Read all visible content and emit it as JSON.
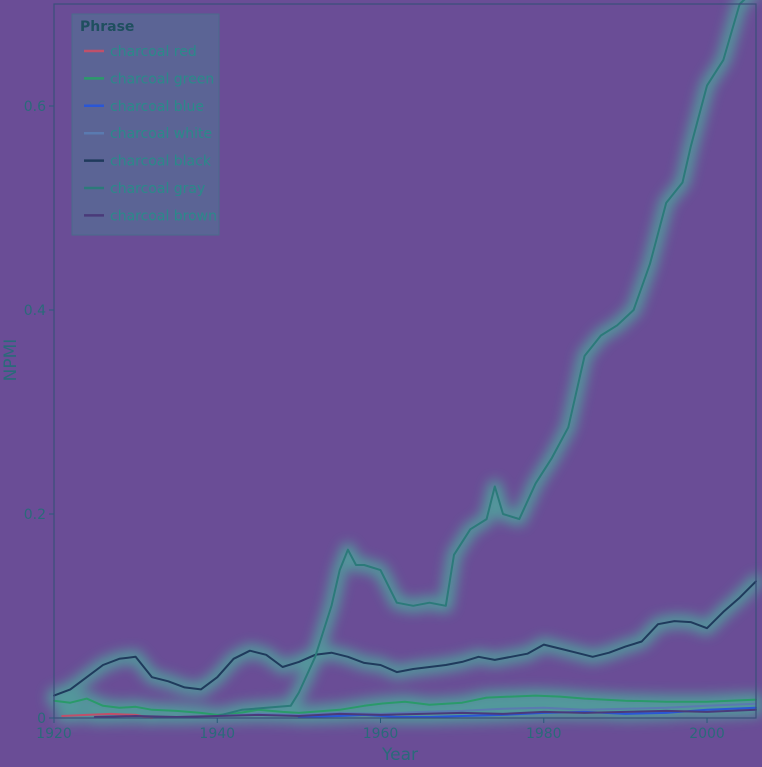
{
  "chart_data": {
    "type": "line",
    "title": "",
    "xlabel": "Year",
    "ylabel": "NPMI",
    "xlim": [
      1920,
      2006
    ],
    "ylim": [
      0,
      0.7
    ],
    "x_ticks": [
      1920,
      1940,
      1960,
      1980,
      2000
    ],
    "x_tick_labels": [
      "1920",
      "1940",
      "1960",
      "1980",
      "2000"
    ],
    "y_ticks": [
      0,
      0.2,
      0.4,
      0.6
    ],
    "y_tick_labels": [
      "0",
      "0.2",
      "0.4",
      "0.6"
    ],
    "grid": false,
    "legend": {
      "title": "Phrase",
      "position": "top-left"
    },
    "series": [
      {
        "name": "charcoal red",
        "color": "#c0506a",
        "x": [
          1921,
          1924,
          1927,
          1930,
          1932
        ],
        "y": [
          0.002,
          0.003,
          0.004,
          0.003,
          0.0
        ]
      },
      {
        "name": "charcoal green",
        "color": "#2a9a6a",
        "x": [
          1920,
          1922,
          1924,
          1926,
          1928,
          1930,
          1932,
          1935,
          1938,
          1940,
          1942,
          1945,
          1948,
          1950,
          1955,
          1958,
          1960,
          1963,
          1966,
          1970,
          1973,
          1976,
          1979,
          1982,
          1985,
          1990,
          1995,
          2000,
          2006
        ],
        "y": [
          0.017,
          0.015,
          0.019,
          0.012,
          0.01,
          0.011,
          0.008,
          0.007,
          0.005,
          0.003,
          0.004,
          0.008,
          0.006,
          0.005,
          0.008,
          0.012,
          0.014,
          0.016,
          0.013,
          0.015,
          0.02,
          0.021,
          0.022,
          0.021,
          0.019,
          0.017,
          0.016,
          0.016,
          0.018
        ]
      },
      {
        "name": "charcoal blue",
        "color": "#2a56d6",
        "x": [
          1950,
          1955,
          1958,
          1962,
          1966,
          1970,
          1975,
          1980,
          1985,
          1990,
          1995,
          2000,
          2006
        ],
        "y": [
          0.001,
          0.002,
          0.003,
          0.001,
          0.001,
          0.002,
          0.003,
          0.005,
          0.006,
          0.004,
          0.005,
          0.008,
          0.01
        ]
      },
      {
        "name": "charcoal white",
        "color": "#5a7ab0",
        "x": [
          1940,
          1945,
          1950,
          1955,
          1960,
          1965,
          1970,
          1975,
          1980,
          1985,
          1990,
          1995,
          2000,
          2006
        ],
        "y": [
          0.002,
          0.004,
          0.003,
          0.005,
          0.004,
          0.006,
          0.007,
          0.009,
          0.01,
          0.008,
          0.009,
          0.01,
          0.012,
          0.014
        ]
      },
      {
        "name": "charcoal black",
        "color": "#1f3a5c",
        "x": [
          1920,
          1922,
          1924,
          1926,
          1928,
          1930,
          1932,
          1934,
          1936,
          1938,
          1940,
          1942,
          1944,
          1946,
          1948,
          1950,
          1952,
          1954,
          1956,
          1958,
          1960,
          1962,
          1964,
          1966,
          1968,
          1970,
          1972,
          1974,
          1976,
          1978,
          1980,
          1982,
          1984,
          1986,
          1988,
          1990,
          1992,
          1994,
          1996,
          1998,
          2000,
          2002,
          2004,
          2006
        ],
        "y": [
          0.022,
          0.028,
          0.04,
          0.052,
          0.058,
          0.06,
          0.04,
          0.036,
          0.03,
          0.028,
          0.04,
          0.058,
          0.066,
          0.062,
          0.05,
          0.055,
          0.062,
          0.064,
          0.06,
          0.054,
          0.052,
          0.045,
          0.048,
          0.05,
          0.052,
          0.055,
          0.06,
          0.057,
          0.06,
          0.063,
          0.072,
          0.068,
          0.064,
          0.06,
          0.064,
          0.07,
          0.075,
          0.092,
          0.095,
          0.094,
          0.088,
          0.104,
          0.118,
          0.134
        ]
      },
      {
        "name": "charcoal gray",
        "color": "#2c7a7a",
        "x": [
          1940,
          1943,
          1946,
          1949,
          1950,
          1952,
          1954,
          1955,
          1956,
          1957,
          1958,
          1960,
          1962,
          1964,
          1966,
          1968,
          1969,
          1971,
          1973,
          1974,
          1975,
          1977,
          1979,
          1981,
          1983,
          1985,
          1987,
          1989,
          1991,
          1993,
          1995,
          1997,
          1998,
          2000,
          2002,
          2004,
          2006
        ],
        "y": [
          0.002,
          0.008,
          0.01,
          0.012,
          0.025,
          0.06,
          0.11,
          0.145,
          0.165,
          0.15,
          0.15,
          0.145,
          0.113,
          0.11,
          0.113,
          0.11,
          0.16,
          0.185,
          0.195,
          0.227,
          0.2,
          0.195,
          0.23,
          0.255,
          0.285,
          0.355,
          0.375,
          0.385,
          0.4,
          0.445,
          0.505,
          0.525,
          0.56,
          0.62,
          0.645,
          0.7,
          0.715
        ]
      },
      {
        "name": "charcoal brown",
        "color": "#4a3a7a",
        "x": [
          1925,
          1930,
          1935,
          1940,
          1945,
          1950,
          1955,
          1960,
          1965,
          1970,
          1975,
          1980,
          1985,
          1990,
          1995,
          2000,
          2006
        ],
        "y": [
          0.001,
          0.002,
          0.001,
          0.002,
          0.003,
          0.002,
          0.004,
          0.003,
          0.004,
          0.005,
          0.004,
          0.006,
          0.005,
          0.006,
          0.007,
          0.006,
          0.008
        ]
      }
    ]
  }
}
